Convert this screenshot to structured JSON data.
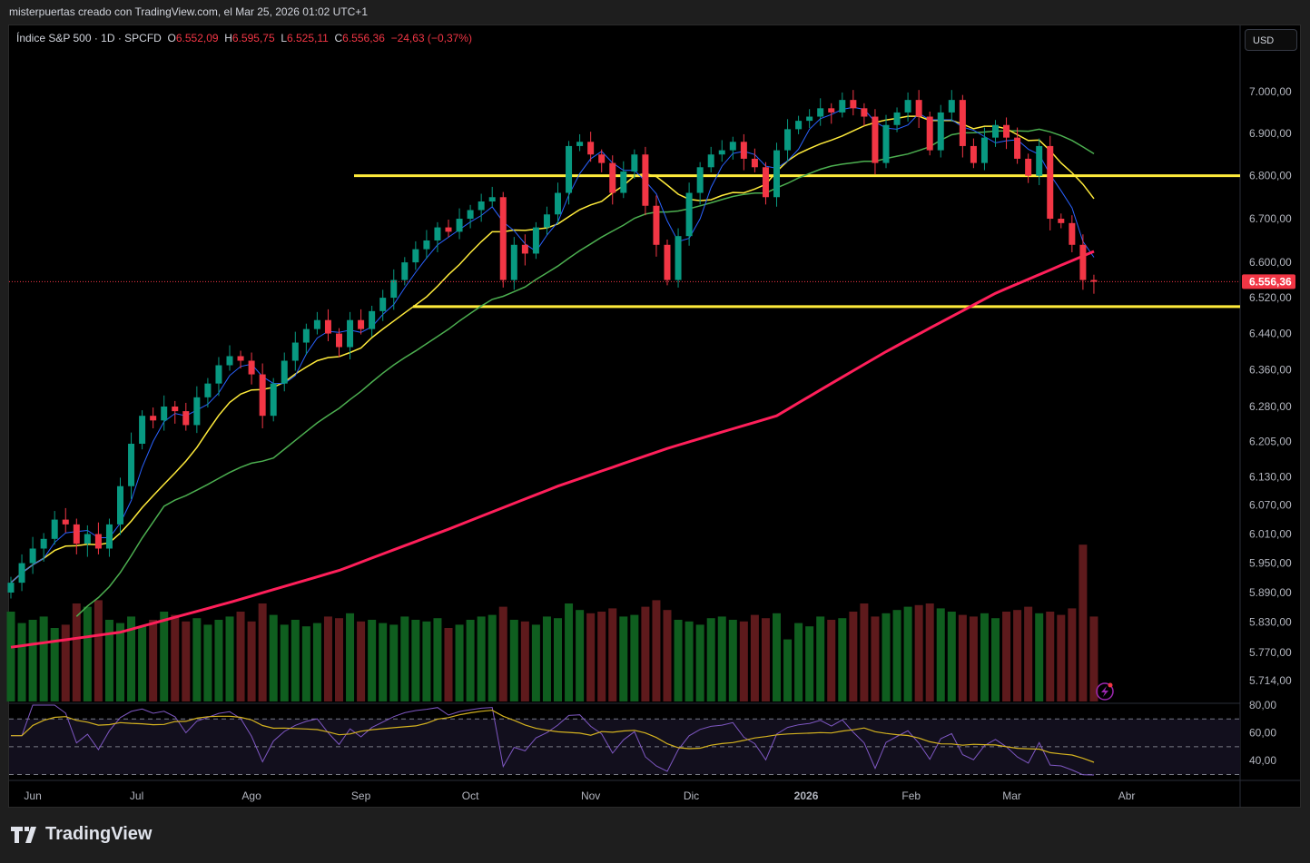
{
  "header": {
    "attribution": "misterpuertas creado con TradingView.com, el Mar 25, 2026 01:02 UTC+1"
  },
  "legend": {
    "symbol": "Índice S&P 500 · 1D · SPCFD",
    "open_label": "O",
    "open": "6.552,09",
    "high_label": "H",
    "high": "6.595,75",
    "low_label": "L",
    "low": "6.525,11",
    "close_label": "C",
    "close": "6.556,36",
    "change": "−24,63 (−0,37%)"
  },
  "currency_button": "USD",
  "last_price_label": "6.556,36",
  "footer": {
    "brand": "TradingView"
  },
  "colors": {
    "up": "#089981",
    "down": "#f23645",
    "vol_up": "#0f5e1f",
    "vol_down": "#5e1a1c",
    "ma10": "#2962ff",
    "ma20": "#ffeb3b",
    "ma50": "#4caf50",
    "ma200": "#ff1f5a",
    "level": "#ffeb3b",
    "rsi": "#7e57c2",
    "rsi_ma": "#d4b21f"
  },
  "chart_data": {
    "type": "candlestick",
    "title": "Índice S&P 500 · 1D · SPCFD",
    "scale": "log",
    "ylim": [
      5714,
      7000
    ],
    "price_ticks": [
      {
        "v": 7000,
        "l": "7.000,00"
      },
      {
        "v": 6900,
        "l": "6.900,00"
      },
      {
        "v": 6800,
        "l": "6.800,00"
      },
      {
        "v": 6700,
        "l": "6.700,00"
      },
      {
        "v": 6600,
        "l": "6.600,00"
      },
      {
        "v": 6520,
        "l": "6.520,00"
      },
      {
        "v": 6440,
        "l": "6.440,00"
      },
      {
        "v": 6360,
        "l": "6.360,00"
      },
      {
        "v": 6280,
        "l": "6.280,00"
      },
      {
        "v": 6205,
        "l": "6.205,00"
      },
      {
        "v": 6130,
        "l": "6.130,00"
      },
      {
        "v": 6070,
        "l": "6.070,00"
      },
      {
        "v": 6010,
        "l": "6.010,00"
      },
      {
        "v": 5950,
        "l": "5.950,00"
      },
      {
        "v": 5890,
        "l": "5.890,00"
      },
      {
        "v": 5830,
        "l": "5.830,00"
      },
      {
        "v": 5770,
        "l": "5.770,00"
      },
      {
        "v": 5714,
        "l": "5.714,00"
      }
    ],
    "time_ticks": [
      {
        "i": 2,
        "l": "Jun"
      },
      {
        "i": 11.5,
        "l": "Jul"
      },
      {
        "i": 22,
        "l": "Ago"
      },
      {
        "i": 32,
        "l": "Sep"
      },
      {
        "i": 42,
        "l": "Oct"
      },
      {
        "i": 53,
        "l": "Nov"
      },
      {
        "i": 62.2,
        "l": "Dic"
      },
      {
        "i": 72.7,
        "l": "2026"
      },
      {
        "i": 82.3,
        "l": "Feb"
      },
      {
        "i": 91.5,
        "l": "Mar"
      },
      {
        "i": 102,
        "l": "Abr"
      }
    ],
    "closes": [
      5910,
      5950,
      5980,
      6000,
      6040,
      6030,
      5990,
      6010,
      5980,
      6030,
      6110,
      6200,
      6260,
      6250,
      6280,
      6270,
      6240,
      6300,
      6330,
      6370,
      6390,
      6380,
      6350,
      6260,
      6330,
      6380,
      6420,
      6450,
      6470,
      6440,
      6410,
      6470,
      6450,
      6490,
      6520,
      6560,
      6600,
      6630,
      6650,
      6680,
      6670,
      6700,
      6720,
      6740,
      6750,
      6560,
      6640,
      6620,
      6680,
      6710,
      6760,
      6870,
      6880,
      6850,
      6830,
      6760,
      6810,
      6850,
      6730,
      6640,
      6560,
      6660,
      6760,
      6820,
      6850,
      6860,
      6880,
      6840,
      6820,
      6750,
      6860,
      6910,
      6930,
      6940,
      6960,
      6950,
      6980,
      6960,
      6940,
      6830,
      6920,
      6950,
      6980,
      6940,
      6860,
      6950,
      6980,
      6870,
      6830,
      6890,
      6920,
      6890,
      6840,
      6800,
      6870,
      6700,
      6690,
      6640,
      6560,
      6556
    ],
    "volume": [
      55,
      48,
      50,
      52,
      45,
      47,
      60,
      58,
      62,
      50,
      48,
      52,
      46,
      50,
      55,
      53,
      49,
      51,
      47,
      50,
      52,
      55,
      49,
      60,
      53,
      47,
      50,
      46,
      48,
      52,
      51,
      54,
      49,
      50,
      48,
      47,
      52,
      50,
      49,
      51,
      45,
      47,
      50,
      52,
      53,
      58,
      50,
      49,
      47,
      52,
      51,
      60,
      56,
      54,
      55,
      57,
      52,
      53,
      58,
      62,
      56,
      50,
      49,
      47,
      51,
      52,
      50,
      49,
      53,
      51,
      54,
      38,
      48,
      46,
      52,
      50,
      51,
      55,
      60,
      52,
      54,
      56,
      58,
      59,
      60,
      57,
      55,
      53,
      52,
      54,
      51,
      55,
      56,
      58,
      54,
      55,
      53,
      57,
      96,
      52
    ],
    "ma200": [
      {
        "i": 0,
        "v": 5780
      },
      {
        "i": 10,
        "v": 5810
      },
      {
        "i": 20,
        "v": 5870
      },
      {
        "i": 30,
        "v": 5935
      },
      {
        "i": 40,
        "v": 6020
      },
      {
        "i": 50,
        "v": 6110
      },
      {
        "i": 60,
        "v": 6190
      },
      {
        "i": 70,
        "v": 6260
      },
      {
        "i": 80,
        "v": 6400
      },
      {
        "i": 90,
        "v": 6530
      },
      {
        "i": 99,
        "v": 6625
      }
    ],
    "levels": [
      6800,
      6500
    ],
    "rsi": {
      "ticks": [
        {
          "v": 80,
          "l": "80,00"
        },
        {
          "v": 60,
          "l": "60,00"
        },
        {
          "v": 40,
          "l": "40,00"
        }
      ],
      "band": [
        30,
        70
      ]
    }
  }
}
